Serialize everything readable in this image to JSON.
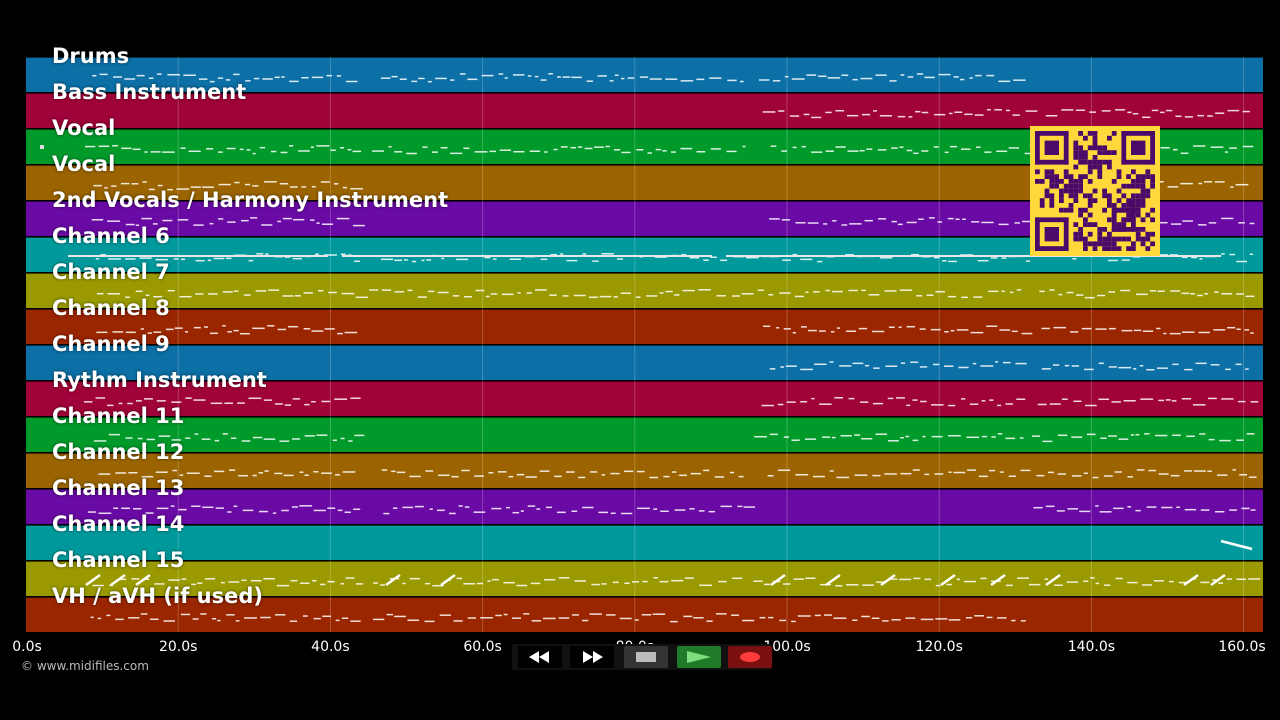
{
  "tracks": [
    {
      "label": "Drums",
      "color": "#0c6fa5"
    },
    {
      "label": "Bass Instrument",
      "color": "#a0023a"
    },
    {
      "label": "Vocal",
      "color": "#009a2a"
    },
    {
      "label": "Vocal",
      "color": "#9b6400"
    },
    {
      "label": "2nd Vocals / Harmony Instrument",
      "color": "#6a0aa5"
    },
    {
      "label": "Channel 6",
      "color": "#00999b"
    },
    {
      "label": "Channel 7",
      "color": "#9a9a00"
    },
    {
      "label": "Channel 8",
      "color": "#9a2600"
    },
    {
      "label": "Channel 9",
      "color": "#0c6fa5"
    },
    {
      "label": "Rythm Instrument",
      "color": "#a0023a"
    },
    {
      "label": "Channel 11",
      "color": "#009a2a"
    },
    {
      "label": "Channel 12",
      "color": "#9b6400"
    },
    {
      "label": "Channel 13",
      "color": "#6a0aa5"
    },
    {
      "label": "Channel 14",
      "color": "#00999b"
    },
    {
      "label": "Channel 15",
      "color": "#9a9a00"
    },
    {
      "label": "VH / aVH (if used)",
      "color": "#9a2600"
    }
  ],
  "timeline": {
    "ticks": [
      "0.0s",
      "20.0s",
      "40.0s",
      "60.0s",
      "80.0s",
      "100.0s",
      "120.0s",
      "140.0s",
      "160.0s"
    ]
  },
  "copyright": "© www.midifiles.com",
  "transport": {
    "buttons": [
      {
        "name": "rewind-button",
        "icon": "rewind-icon"
      },
      {
        "name": "fast-forward-button",
        "icon": "fast-forward-icon"
      },
      {
        "name": "stop-button",
        "icon": "stop-icon"
      },
      {
        "name": "play-button",
        "icon": "play-icon"
      },
      {
        "name": "record-button",
        "icon": "record-icon"
      }
    ]
  },
  "qr": {
    "icon": "qr-code-icon",
    "bg": "#ffd93b",
    "fg": "#4a0a6a"
  }
}
